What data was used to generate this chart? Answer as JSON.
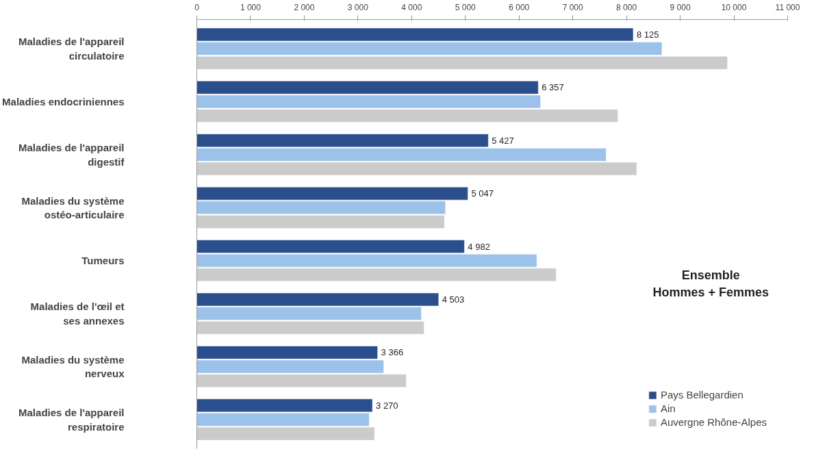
{
  "chart_data": {
    "type": "bar",
    "orientation": "horizontal",
    "categories": [
      "Maladies de l'appareil circulatoire",
      "Maladies endocriniennes",
      "Maladies de l'appareil digestif",
      "Maladies du système ostéo-articulaire",
      "Tumeurs",
      "Maladies de l'œil et ses annexes",
      "Maladies du système nerveux",
      "Maladies de l'appareil respiratoire"
    ],
    "series": [
      {
        "name": "Pays Bellegardien",
        "color": "#2b4f8c",
        "values": [
          8125,
          6357,
          5427,
          5047,
          4982,
          4503,
          3366,
          3270
        ],
        "value_labels": [
          "8 125",
          "6 357",
          "5 427",
          "5 047",
          "4 982",
          "4 503",
          "3 366",
          "3 270"
        ]
      },
      {
        "name": "Ain",
        "color": "#9cc2ea",
        "values": [
          8660,
          6400,
          7620,
          4630,
          6330,
          4180,
          3480,
          3210
        ]
      },
      {
        "name": "Auvergne Rhône-Alpes",
        "color": "#cbcbcb",
        "values": [
          9880,
          7840,
          8190,
          4610,
          6690,
          4230,
          3900,
          3310
        ]
      }
    ],
    "xlim": [
      0,
      11000
    ],
    "xticks": [
      0,
      {
        "value": 1000,
        "label": "1 000"
      },
      {
        "value": 2000,
        "label": "2 000"
      },
      {
        "value": 3000,
        "label": "3 000"
      },
      {
        "value": 4000,
        "label": "4 000"
      },
      {
        "value": 5000,
        "label": "5 000"
      },
      {
        "value": 6000,
        "label": "6 000"
      },
      {
        "value": 7000,
        "label": "7 000"
      },
      {
        "value": 8000,
        "label": "8 000"
      },
      {
        "value": 9000,
        "label": "9 000"
      },
      {
        "value": 10000,
        "label": "10 000"
      },
      {
        "value": 11000,
        "label": "11 000"
      }
    ],
    "annotations": [
      "Ensemble\nHommes + Femmes"
    ],
    "legend": "bottom right",
    "grid": false
  }
}
